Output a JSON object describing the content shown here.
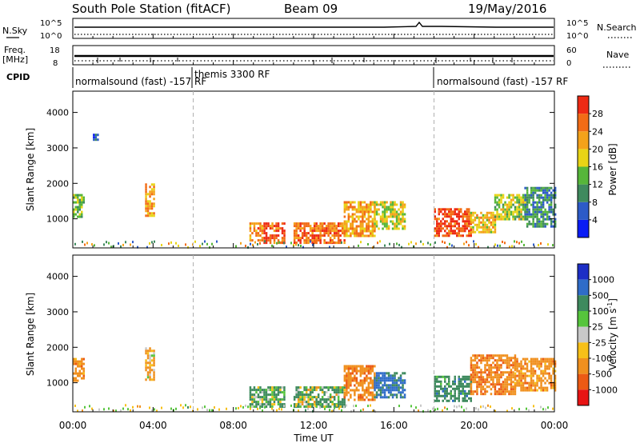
{
  "header": {
    "station": "South Pole Station (fitACF)",
    "beam": "Beam 09",
    "date": "19/May/2016"
  },
  "noise_panel": {
    "left_label": "N.Sky",
    "left_ticks": [
      "10^5",
      "10^0"
    ],
    "right_ticks": [
      "10^5",
      "10^0"
    ],
    "right_label": "N.Search"
  },
  "freq_panel": {
    "left_label_1": "Freq.",
    "left_label_2": "[MHz]",
    "left_ticks": [
      "18",
      "8"
    ],
    "right_ticks": [
      "60",
      "0"
    ],
    "right_label": "Nave"
  },
  "cpid": {
    "label": "CPID",
    "segments": [
      {
        "text": "normalsound (fast) -157 RF"
      },
      {
        "text": "themis 3300 RF"
      },
      {
        "text": "normalsound (fast) -157 RF"
      }
    ]
  },
  "time_axis": {
    "ticks": [
      "00:00",
      "04:00",
      "08:00",
      "12:00",
      "16:00",
      "20:00",
      "00:00"
    ],
    "label": "Time UT"
  },
  "range_axis": {
    "label": "Slant Range [km]",
    "ticks": [
      "1000",
      "2000",
      "3000",
      "4000"
    ]
  },
  "power_colorbar": {
    "label": "Power [dB]",
    "ticks": [
      "4",
      "8",
      "12",
      "16",
      "20",
      "24",
      "28"
    ],
    "colors": [
      "#0a1cf5",
      "#2d5bc8",
      "#3f8a5e",
      "#56b63a",
      "#e8d416",
      "#f4a21a",
      "#f26c16",
      "#ee2a14"
    ]
  },
  "velocity_colorbar": {
    "label": "Velocity [m s",
    "label_sup": "-1",
    "label_end": "]",
    "ticks": [
      "1000",
      "500",
      "100",
      "25",
      "-25",
      "-100",
      "-500",
      "-1000"
    ],
    "colors": [
      "#1c2ec6",
      "#2f6cc8",
      "#3e8a5e",
      "#56c53c",
      "#c8c8c8",
      "#f7c018",
      "#f0901e",
      "#ec5a14",
      "#e81414"
    ]
  },
  "chart_data": [
    {
      "type": "heatmap",
      "title": "Power",
      "xlabel": "Time UT",
      "ylabel": "Slant Range [km]",
      "xlim": [
        0,
        24
      ],
      "ylim": [
        180,
        4600
      ],
      "colorbar_label": "Power [dB]",
      "colorbar_range": [
        0,
        32
      ],
      "patches": [
        {
          "t0": 0.0,
          "t1": 0.5,
          "r0": 1050,
          "r1": 1700,
          "value": 14
        },
        {
          "t0": 1.0,
          "t1": 1.2,
          "r0": 3250,
          "r1": 3400,
          "value": 6
        },
        {
          "t0": 3.6,
          "t1": 4.0,
          "r0": 1100,
          "r1": 2000,
          "value": 22
        },
        {
          "t0": 8.8,
          "t1": 9.4,
          "r0": 400,
          "r1": 900,
          "value": 24
        },
        {
          "t0": 9.5,
          "t1": 10.5,
          "r0": 300,
          "r1": 900,
          "value": 28
        },
        {
          "t0": 11.0,
          "t1": 13.5,
          "r0": 300,
          "r1": 900,
          "value": 26
        },
        {
          "t0": 13.5,
          "t1": 15.0,
          "r0": 500,
          "r1": 1500,
          "value": 22
        },
        {
          "t0": 15.0,
          "t1": 16.5,
          "r0": 700,
          "r1": 1500,
          "value": 18
        },
        {
          "t0": 18.0,
          "t1": 19.8,
          "r0": 500,
          "r1": 1300,
          "value": 28
        },
        {
          "t0": 19.8,
          "t1": 21.0,
          "r0": 600,
          "r1": 1200,
          "value": 20
        },
        {
          "t0": 21.0,
          "t1": 22.5,
          "r0": 1000,
          "r1": 1700,
          "value": 16
        },
        {
          "t0": 22.5,
          "t1": 24.0,
          "r0": 800,
          "r1": 1900,
          "value": 10
        }
      ]
    },
    {
      "type": "heatmap",
      "title": "Velocity",
      "xlabel": "Time UT",
      "ylabel": "Slant Range [km]",
      "xlim": [
        0,
        24
      ],
      "ylim": [
        180,
        4600
      ],
      "colorbar_label": "Velocity [m s-1]",
      "colorbar_range": [
        -1000,
        1000
      ],
      "patches": [
        {
          "t0": 0.0,
          "t1": 0.5,
          "r0": 1050,
          "r1": 1700,
          "value": -300
        },
        {
          "t0": 3.6,
          "t1": 4.0,
          "r0": 1100,
          "r1": 2000,
          "value": -200
        },
        {
          "t0": 8.8,
          "t1": 10.5,
          "r0": 300,
          "r1": 900,
          "value": 150
        },
        {
          "t0": 11.0,
          "t1": 13.5,
          "r0": 300,
          "r1": 900,
          "value": 120
        },
        {
          "t0": 13.5,
          "t1": 15.0,
          "r0": 500,
          "r1": 1500,
          "value": -350
        },
        {
          "t0": 15.0,
          "t1": 16.5,
          "r0": 600,
          "r1": 1300,
          "value": 600
        },
        {
          "t0": 18.0,
          "t1": 19.8,
          "r0": 500,
          "r1": 1200,
          "value": 300
        },
        {
          "t0": 19.8,
          "t1": 22.0,
          "r0": 700,
          "r1": 1800,
          "value": -400
        },
        {
          "t0": 22.0,
          "t1": 24.0,
          "r0": 800,
          "r1": 1700,
          "value": -300
        }
      ]
    }
  ]
}
